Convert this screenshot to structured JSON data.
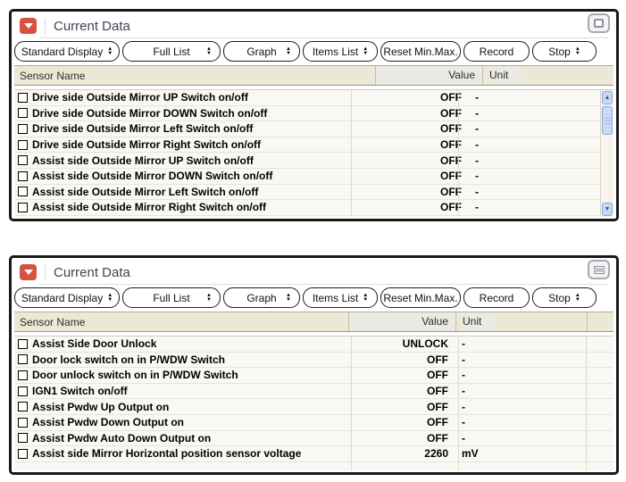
{
  "shared": {
    "title": "Current Data",
    "columns": {
      "name": "Sensor Name",
      "value": "Value",
      "unit": "Unit"
    },
    "toolbar": [
      {
        "label": "Standard Display",
        "spinner": true,
        "spread": false
      },
      {
        "label": "Full List",
        "spinner": true,
        "spread": true
      },
      {
        "label": "Graph",
        "spinner": true,
        "spread": true
      },
      {
        "label": "Items List",
        "spinner": true,
        "spread": false
      },
      {
        "label": "Reset Min.Max.",
        "spinner": false,
        "spread": false
      },
      {
        "label": "Record",
        "spinner": false,
        "spread": false
      },
      {
        "label": "Stop",
        "spinner": true,
        "spread": false
      }
    ]
  },
  "panels": [
    {
      "position": "top",
      "window_icon": "single-pane-icon",
      "rows": [
        {
          "name": "Drive side Outside Mirror UP Switch on/off",
          "value": "OFF",
          "unit": "-"
        },
        {
          "name": "Drive side Outside Mirror DOWN Switch on/off",
          "value": "OFF",
          "unit": "-"
        },
        {
          "name": "Drive side Outside Mirror Left Switch on/off",
          "value": "OFF",
          "unit": "-"
        },
        {
          "name": "Drive side Outside Mirror Right Switch on/off",
          "value": "OFF",
          "unit": "-"
        },
        {
          "name": "Assist side Outside Mirror UP Switch on/off",
          "value": "OFF",
          "unit": "-"
        },
        {
          "name": "Assist side Outside Mirror DOWN Switch on/off",
          "value": "OFF",
          "unit": "-"
        },
        {
          "name": "Assist side Outside Mirror Left Switch on/off",
          "value": "OFF",
          "unit": "-"
        },
        {
          "name": "Assist side Outside Mirror Right Switch on/off",
          "value": "OFF",
          "unit": "-"
        }
      ]
    },
    {
      "position": "bottom",
      "window_icon": "split-pane-icon",
      "rows": [
        {
          "name": "Assist Side Door Unlock",
          "value": "UNLOCK",
          "unit": "-"
        },
        {
          "name": "Door lock switch on in P/WDW Switch",
          "value": "OFF",
          "unit": "-"
        },
        {
          "name": "Door unlock switch on in P/WDW Switch",
          "value": "OFF",
          "unit": "-"
        },
        {
          "name": "IGN1 Switch on/off",
          "value": "OFF",
          "unit": "-"
        },
        {
          "name": "Assist Pwdw Up Output on",
          "value": "OFF",
          "unit": "-"
        },
        {
          "name": "Assist Pwdw Down Output on",
          "value": "OFF",
          "unit": "-"
        },
        {
          "name": "Assist Pwdw Auto Down Output on",
          "value": "OFF",
          "unit": "-"
        },
        {
          "name": "Assist side Mirror Horizontal position sensor voltage",
          "value": "2260",
          "unit": "mV"
        }
      ]
    }
  ]
}
